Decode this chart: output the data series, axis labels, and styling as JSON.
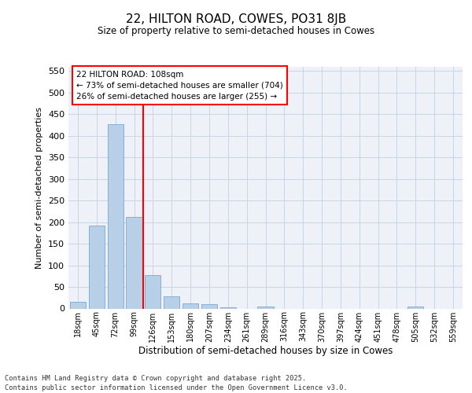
{
  "title1": "22, HILTON ROAD, COWES, PO31 8JB",
  "title2": "Size of property relative to semi-detached houses in Cowes",
  "xlabel": "Distribution of semi-detached houses by size in Cowes",
  "ylabel": "Number of semi-detached properties",
  "bar_values": [
    15,
    193,
    427,
    212,
    78,
    28,
    12,
    10,
    3,
    0,
    5,
    0,
    0,
    0,
    0,
    0,
    0,
    0,
    5,
    0,
    0
  ],
  "bar_labels": [
    "18sqm",
    "45sqm",
    "72sqm",
    "99sqm",
    "126sqm",
    "153sqm",
    "180sqm",
    "207sqm",
    "234sqm",
    "261sqm",
    "289sqm",
    "316sqm",
    "343sqm",
    "370sqm",
    "397sqm",
    "424sqm",
    "451sqm",
    "478sqm",
    "505sqm",
    "532sqm",
    "559sqm"
  ],
  "bar_color": "#b8cfe8",
  "bar_edge_color": "#7aaad0",
  "grid_color": "#c8d4e4",
  "vline_color": "red",
  "vline_x": 3.5,
  "annotation_title": "22 HILTON ROAD: 108sqm",
  "annotation_line1": "← 73% of semi-detached houses are smaller (704)",
  "annotation_line2": "26% of semi-detached houses are larger (255) →",
  "ylim": [
    0,
    560
  ],
  "yticks": [
    0,
    50,
    100,
    150,
    200,
    250,
    300,
    350,
    400,
    450,
    500,
    550
  ],
  "footer": "Contains HM Land Registry data © Crown copyright and database right 2025.\nContains public sector information licensed under the Open Government Licence v3.0.",
  "bg_color": "#eef2f8"
}
